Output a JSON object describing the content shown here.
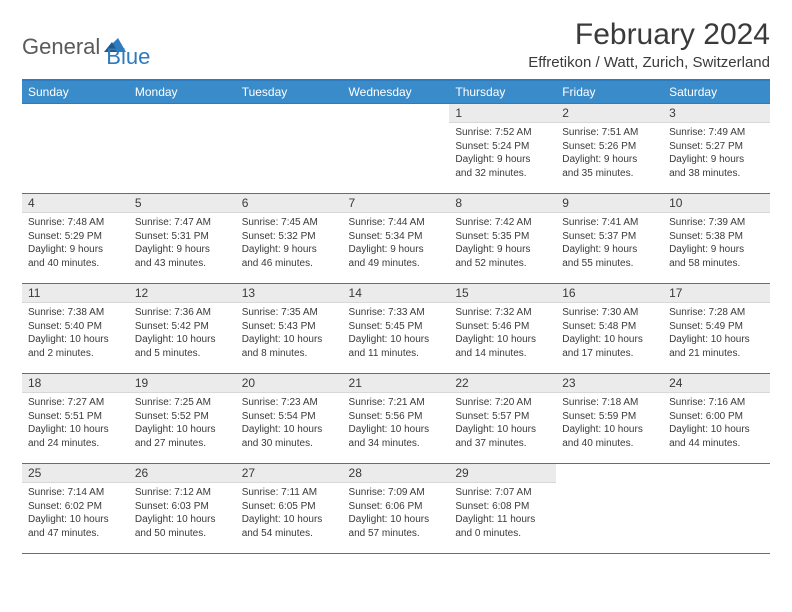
{
  "brand": {
    "part1": "General",
    "part2": "Blue"
  },
  "title": "February 2024",
  "subtitle": "Effretikon / Watt, Zurich, Switzerland",
  "colors": {
    "header_bg": "#3a8bc9",
    "header_border": "#2f7bbf",
    "daynum_bg": "#ebebeb",
    "text": "#3a3a3a",
    "brand_blue": "#2f7bbf"
  },
  "day_headers": [
    "Sunday",
    "Monday",
    "Tuesday",
    "Wednesday",
    "Thursday",
    "Friday",
    "Saturday"
  ],
  "weeks": [
    [
      {
        "n": "",
        "lines": []
      },
      {
        "n": "",
        "lines": []
      },
      {
        "n": "",
        "lines": []
      },
      {
        "n": "",
        "lines": []
      },
      {
        "n": "1",
        "lines": [
          "Sunrise: 7:52 AM",
          "Sunset: 5:24 PM",
          "Daylight: 9 hours",
          "and 32 minutes."
        ]
      },
      {
        "n": "2",
        "lines": [
          "Sunrise: 7:51 AM",
          "Sunset: 5:26 PM",
          "Daylight: 9 hours",
          "and 35 minutes."
        ]
      },
      {
        "n": "3",
        "lines": [
          "Sunrise: 7:49 AM",
          "Sunset: 5:27 PM",
          "Daylight: 9 hours",
          "and 38 minutes."
        ]
      }
    ],
    [
      {
        "n": "4",
        "lines": [
          "Sunrise: 7:48 AM",
          "Sunset: 5:29 PM",
          "Daylight: 9 hours",
          "and 40 minutes."
        ]
      },
      {
        "n": "5",
        "lines": [
          "Sunrise: 7:47 AM",
          "Sunset: 5:31 PM",
          "Daylight: 9 hours",
          "and 43 minutes."
        ]
      },
      {
        "n": "6",
        "lines": [
          "Sunrise: 7:45 AM",
          "Sunset: 5:32 PM",
          "Daylight: 9 hours",
          "and 46 minutes."
        ]
      },
      {
        "n": "7",
        "lines": [
          "Sunrise: 7:44 AM",
          "Sunset: 5:34 PM",
          "Daylight: 9 hours",
          "and 49 minutes."
        ]
      },
      {
        "n": "8",
        "lines": [
          "Sunrise: 7:42 AM",
          "Sunset: 5:35 PM",
          "Daylight: 9 hours",
          "and 52 minutes."
        ]
      },
      {
        "n": "9",
        "lines": [
          "Sunrise: 7:41 AM",
          "Sunset: 5:37 PM",
          "Daylight: 9 hours",
          "and 55 minutes."
        ]
      },
      {
        "n": "10",
        "lines": [
          "Sunrise: 7:39 AM",
          "Sunset: 5:38 PM",
          "Daylight: 9 hours",
          "and 58 minutes."
        ]
      }
    ],
    [
      {
        "n": "11",
        "lines": [
          "Sunrise: 7:38 AM",
          "Sunset: 5:40 PM",
          "Daylight: 10 hours",
          "and 2 minutes."
        ]
      },
      {
        "n": "12",
        "lines": [
          "Sunrise: 7:36 AM",
          "Sunset: 5:42 PM",
          "Daylight: 10 hours",
          "and 5 minutes."
        ]
      },
      {
        "n": "13",
        "lines": [
          "Sunrise: 7:35 AM",
          "Sunset: 5:43 PM",
          "Daylight: 10 hours",
          "and 8 minutes."
        ]
      },
      {
        "n": "14",
        "lines": [
          "Sunrise: 7:33 AM",
          "Sunset: 5:45 PM",
          "Daylight: 10 hours",
          "and 11 minutes."
        ]
      },
      {
        "n": "15",
        "lines": [
          "Sunrise: 7:32 AM",
          "Sunset: 5:46 PM",
          "Daylight: 10 hours",
          "and 14 minutes."
        ]
      },
      {
        "n": "16",
        "lines": [
          "Sunrise: 7:30 AM",
          "Sunset: 5:48 PM",
          "Daylight: 10 hours",
          "and 17 minutes."
        ]
      },
      {
        "n": "17",
        "lines": [
          "Sunrise: 7:28 AM",
          "Sunset: 5:49 PM",
          "Daylight: 10 hours",
          "and 21 minutes."
        ]
      }
    ],
    [
      {
        "n": "18",
        "lines": [
          "Sunrise: 7:27 AM",
          "Sunset: 5:51 PM",
          "Daylight: 10 hours",
          "and 24 minutes."
        ]
      },
      {
        "n": "19",
        "lines": [
          "Sunrise: 7:25 AM",
          "Sunset: 5:52 PM",
          "Daylight: 10 hours",
          "and 27 minutes."
        ]
      },
      {
        "n": "20",
        "lines": [
          "Sunrise: 7:23 AM",
          "Sunset: 5:54 PM",
          "Daylight: 10 hours",
          "and 30 minutes."
        ]
      },
      {
        "n": "21",
        "lines": [
          "Sunrise: 7:21 AM",
          "Sunset: 5:56 PM",
          "Daylight: 10 hours",
          "and 34 minutes."
        ]
      },
      {
        "n": "22",
        "lines": [
          "Sunrise: 7:20 AM",
          "Sunset: 5:57 PM",
          "Daylight: 10 hours",
          "and 37 minutes."
        ]
      },
      {
        "n": "23",
        "lines": [
          "Sunrise: 7:18 AM",
          "Sunset: 5:59 PM",
          "Daylight: 10 hours",
          "and 40 minutes."
        ]
      },
      {
        "n": "24",
        "lines": [
          "Sunrise: 7:16 AM",
          "Sunset: 6:00 PM",
          "Daylight: 10 hours",
          "and 44 minutes."
        ]
      }
    ],
    [
      {
        "n": "25",
        "lines": [
          "Sunrise: 7:14 AM",
          "Sunset: 6:02 PM",
          "Daylight: 10 hours",
          "and 47 minutes."
        ]
      },
      {
        "n": "26",
        "lines": [
          "Sunrise: 7:12 AM",
          "Sunset: 6:03 PM",
          "Daylight: 10 hours",
          "and 50 minutes."
        ]
      },
      {
        "n": "27",
        "lines": [
          "Sunrise: 7:11 AM",
          "Sunset: 6:05 PM",
          "Daylight: 10 hours",
          "and 54 minutes."
        ]
      },
      {
        "n": "28",
        "lines": [
          "Sunrise: 7:09 AM",
          "Sunset: 6:06 PM",
          "Daylight: 10 hours",
          "and 57 minutes."
        ]
      },
      {
        "n": "29",
        "lines": [
          "Sunrise: 7:07 AM",
          "Sunset: 6:08 PM",
          "Daylight: 11 hours",
          "and 0 minutes."
        ]
      },
      {
        "n": "",
        "lines": []
      },
      {
        "n": "",
        "lines": []
      }
    ]
  ]
}
